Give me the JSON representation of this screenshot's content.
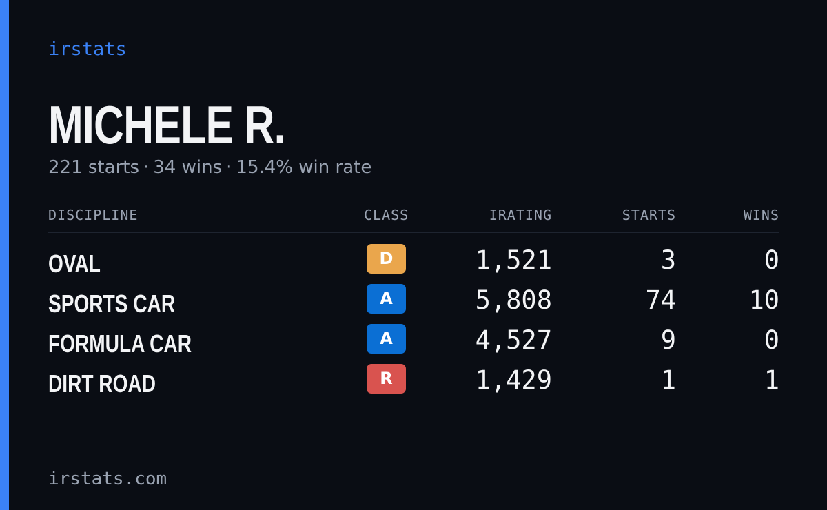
{
  "brand": "irstats",
  "player": {
    "name": "MICHELE R.",
    "starts_text": "221 starts",
    "wins_text": "34 wins",
    "win_rate_text": "15.4% win rate",
    "separator": "·"
  },
  "table": {
    "headers": {
      "discipline": "DISCIPLINE",
      "class": "CLASS",
      "irating": "IRATING",
      "starts": "STARTS",
      "wins": "WINS"
    },
    "rows": [
      {
        "discipline": "OVAL",
        "class": "D",
        "class_color": "#eaa64c",
        "irating": "1,521",
        "starts": "3",
        "wins": "0"
      },
      {
        "discipline": "SPORTS CAR",
        "class": "A",
        "class_color": "#0b6fd4",
        "irating": "5,808",
        "starts": "74",
        "wins": "10"
      },
      {
        "discipline": "FORMULA CAR",
        "class": "A",
        "class_color": "#0b6fd4",
        "irating": "4,527",
        "starts": "9",
        "wins": "0"
      },
      {
        "discipline": "DIRT ROAD",
        "class": "R",
        "class_color": "#d9534f",
        "irating": "1,429",
        "starts": "1",
        "wins": "1"
      }
    ]
  },
  "footer": "irstats.com",
  "colors": {
    "background": "#0a0d14",
    "accent": "#3b82f6",
    "text_primary": "#f3f4f6",
    "text_muted": "#9aa3b2"
  }
}
